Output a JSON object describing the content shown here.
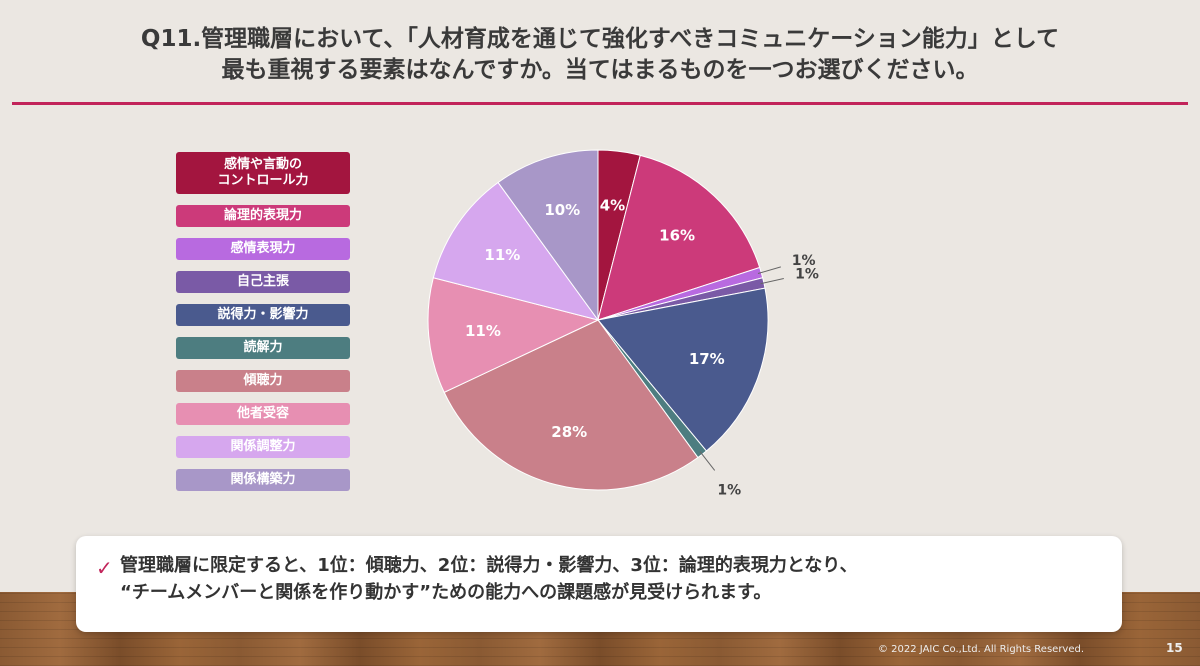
{
  "header": {
    "title_line1": "Q11.管理職層において、「人材育成を通じて強化すべきコミュニケーション能力」として",
    "title_line2": "最も重視する要素はなんですか。当てはまるものを一つお選びください。"
  },
  "chart_data": {
    "type": "pie",
    "title": "",
    "slices": [
      {
        "label": "感情や言動の\nコントロール力",
        "value": 4,
        "display": "4%",
        "color": "#a3153f"
      },
      {
        "label": "論理的表現力",
        "value": 16,
        "display": "16%",
        "color": "#cc3a7a"
      },
      {
        "label": "感情表現力",
        "value": 1,
        "display": "1%",
        "color": "#b86ae0"
      },
      {
        "label": "自己主張",
        "value": 1,
        "display": "1%",
        "color": "#7a5aa6"
      },
      {
        "label": "説得力・影響力",
        "value": 17,
        "display": "17%",
        "color": "#4a5a8e"
      },
      {
        "label": "読解力",
        "value": 1,
        "display": "1%",
        "color": "#4d7d80"
      },
      {
        "label": "傾聴力",
        "value": 28,
        "display": "28%",
        "color": "#c9808a"
      },
      {
        "label": "他者受容",
        "value": 11,
        "display": "11%",
        "color": "#e78fb2"
      },
      {
        "label": "関係調整力",
        "value": 11,
        "display": "11%",
        "color": "#d6a7ee"
      },
      {
        "label": "関係構築力",
        "value": 10,
        "display": "10%",
        "color": "#a897c8"
      }
    ],
    "start_angle_deg": 0,
    "direction": "clockwise",
    "legend_position": "left"
  },
  "callout": {
    "check": "✓",
    "line1": "管理職層に限定すると、1位：傾聴力、2位：説得力・影響力、3位：論理的表現力となり、",
    "line2": "“チームメンバーと関係を作り動かす”ための能力への課題感が見受けられます。"
  },
  "footer": {
    "copyright": "© 2022 JAIC Co.,Ltd. All Rights Reserved.",
    "page": "15"
  }
}
